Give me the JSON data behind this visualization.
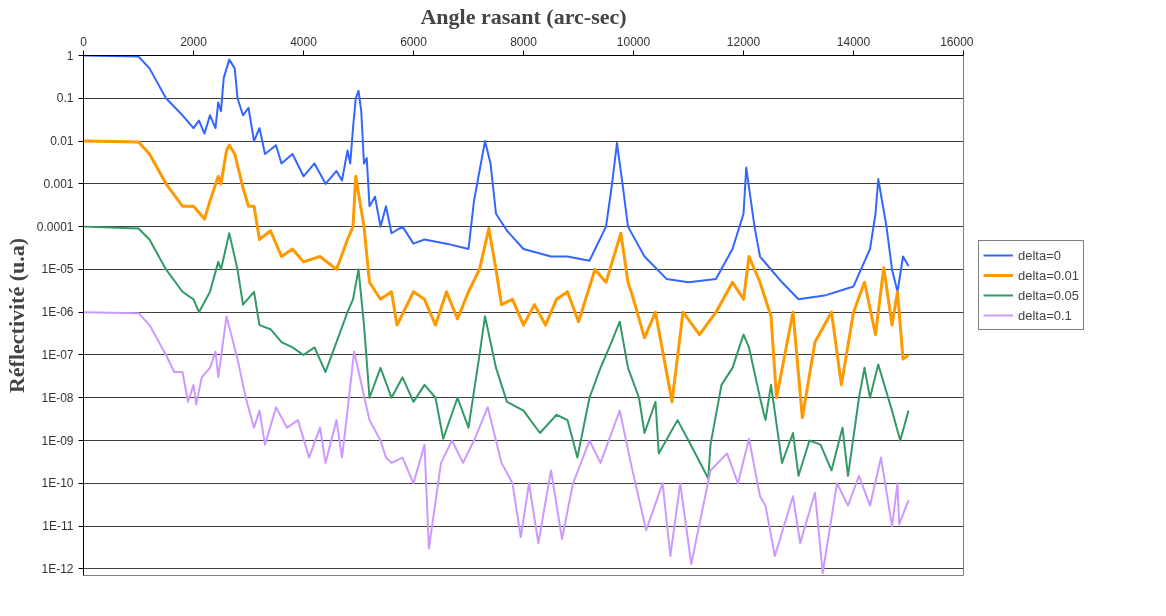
{
  "chart_data": {
    "type": "line",
    "xlabel": "Angle rasant (arc-sec)",
    "ylabel": "Réflectivité (u.a)",
    "log": "y",
    "grid": "y",
    "legend": "right",
    "xlim": [
      0,
      16000
    ],
    "xticks": [
      0,
      2000,
      4000,
      6000,
      8000,
      10000,
      12000,
      14000,
      16000
    ],
    "ylim": [
      7e-13,
      1
    ],
    "yticks": [
      1,
      0.1,
      0.01,
      0.001,
      0.0001,
      {
        "value": 1e-05,
        "label": "1E-05"
      },
      {
        "value": 1e-06,
        "label": "1E-06"
      },
      {
        "value": 1e-07,
        "label": "1E-07"
      },
      {
        "value": 1e-08,
        "label": "1E-08"
      },
      {
        "value": 1e-09,
        "label": "1E-09"
      },
      {
        "value": 1e-10,
        "label": "1E-10"
      },
      {
        "value": 1e-11,
        "label": "1E-11"
      },
      {
        "value": 1e-12,
        "label": "1E-12"
      }
    ],
    "series": [
      {
        "name": "delta=0",
        "color": "#3366ff",
        "x": [
          0,
          1000,
          1200,
          1500,
          1800,
          2000,
          2100,
          2200,
          2300,
          2400,
          2450,
          2500,
          2550,
          2650,
          2750,
          2800,
          2900,
          3000,
          3100,
          3200,
          3300,
          3500,
          3600,
          3800,
          4000,
          4200,
          4400,
          4600,
          4700,
          4800,
          4850,
          4900,
          4950,
          5000,
          5050,
          5100,
          5150,
          5200,
          5300,
          5400,
          5500,
          5600,
          5800,
          6000,
          6200,
          6600,
          7000,
          7100,
          7200,
          7300,
          7400,
          7500,
          7700,
          8000,
          8500,
          8800,
          9200,
          9500,
          9600,
          9700,
          9800,
          9900,
          10200,
          10600,
          11000,
          11500,
          11800,
          12000,
          12050,
          12200,
          12300,
          12700,
          13000,
          13500,
          14000,
          14300,
          14400,
          14450,
          14600,
          14700,
          14800,
          14900,
          15000
        ],
        "values": [
          1,
          0.95,
          0.5,
          0.1,
          0.04,
          0.02,
          0.03,
          0.015,
          0.04,
          0.02,
          0.08,
          0.05,
          0.3,
          0.8,
          0.5,
          0.1,
          0.04,
          0.06,
          0.01,
          0.02,
          0.005,
          0.008,
          0.003,
          0.005,
          0.0015,
          0.003,
          0.001,
          0.002,
          0.0012,
          0.006,
          0.003,
          0.02,
          0.1,
          0.15,
          0.05,
          0.003,
          0.004,
          0.0003,
          0.0005,
          0.0001,
          0.0003,
          7e-05,
          0.0001,
          4e-05,
          5e-05,
          4e-05,
          3e-05,
          0.0004,
          0.002,
          0.01,
          0.003,
          0.0002,
          8e-05,
          3e-05,
          2e-05,
          2e-05,
          1.6e-05,
          0.0001,
          0.0008,
          0.009,
          0.001,
          0.0001,
          2e-05,
          6e-06,
          5e-06,
          6e-06,
          3e-05,
          0.0002,
          0.0024,
          0.0001,
          2e-05,
          5e-06,
          2e-06,
          2.5e-06,
          4e-06,
          3e-05,
          0.0002,
          0.0013,
          0.0001,
          1e-05,
          3e-06,
          2e-05,
          1.2e-05
        ]
      },
      {
        "name": "delta=0.01",
        "color": "#ff9900",
        "x": [
          0,
          1000,
          1200,
          1500,
          1800,
          2000,
          2200,
          2300,
          2450,
          2500,
          2600,
          2650,
          2750,
          2900,
          3000,
          3100,
          3200,
          3400,
          3600,
          3800,
          4000,
          4300,
          4600,
          4800,
          4900,
          4950,
          5100,
          5200,
          5400,
          5600,
          5700,
          6000,
          6200,
          6400,
          6600,
          6800,
          7000,
          7200,
          7370,
          7500,
          7600,
          7800,
          8000,
          8200,
          8400,
          8600,
          8800,
          9000,
          9300,
          9500,
          9770,
          9900,
          10000,
          10200,
          10400,
          10700,
          10900,
          11200,
          11500,
          11800,
          12000,
          12100,
          12300,
          12500,
          12600,
          12900,
          13070,
          13300,
          13600,
          13780,
          14000,
          14200,
          14400,
          14550,
          14700,
          14800,
          14900,
          15000
        ],
        "values": [
          0.01,
          0.0095,
          0.005,
          0.001,
          0.0003,
          0.0003,
          0.00015,
          0.0004,
          0.0015,
          0.001,
          0.006,
          0.008,
          0.005,
          0.0008,
          0.0003,
          0.0003,
          5e-05,
          8e-05,
          2e-05,
          3e-05,
          1.5e-05,
          2e-05,
          1e-05,
          5e-05,
          0.0001,
          0.0015,
          0.0001,
          5e-06,
          2e-06,
          3e-06,
          5e-07,
          3e-06,
          2e-06,
          5e-07,
          3e-06,
          7e-07,
          3e-06,
          1e-05,
          9e-05,
          1e-05,
          1.5e-06,
          2e-06,
          5e-07,
          1.5e-06,
          5e-07,
          2e-06,
          3e-06,
          6e-07,
          1e-05,
          5e-06,
          7e-05,
          5e-06,
          2e-06,
          2.5e-07,
          1e-06,
          8e-09,
          1e-06,
          3e-07,
          1e-06,
          5e-06,
          2e-06,
          2e-05,
          5e-06,
          8e-07,
          1e-08,
          1e-06,
          3.4e-09,
          2e-07,
          1e-06,
          2e-08,
          1e-06,
          5e-06,
          3e-07,
          1.1e-05,
          5e-07,
          3e-06,
          8e-08,
          1e-07
        ]
      },
      {
        "name": "delta=0.05",
        "color": "#339966",
        "x": [
          0,
          1000,
          1200,
          1500,
          1800,
          2000,
          2100,
          2300,
          2450,
          2500,
          2650,
          2800,
          2900,
          3100,
          3200,
          3400,
          3600,
          3800,
          4000,
          4200,
          4400,
          4600,
          4800,
          4900,
          5000,
          5100,
          5200,
          5400,
          5600,
          5800,
          6000,
          6200,
          6400,
          6540,
          6800,
          7000,
          7200,
          7300,
          7500,
          7700,
          8000,
          8300,
          8600,
          8800,
          8980,
          9200,
          9400,
          9600,
          9750,
          9900,
          10100,
          10200,
          10400,
          10460,
          10800,
          11000,
          11360,
          11400,
          11600,
          11800,
          12000,
          12100,
          12300,
          12400,
          12500,
          12700,
          12900,
          13000,
          13200,
          13400,
          13600,
          13800,
          13900,
          14100,
          14200,
          14300,
          14450,
          14700,
          14850,
          15000
        ],
        "values": [
          0.0001,
          9e-05,
          5e-05,
          1e-05,
          3e-06,
          2e-06,
          1e-06,
          3e-06,
          1.5e-05,
          1e-05,
          7e-05,
          1e-05,
          1.5e-06,
          3e-06,
          5e-07,
          4e-07,
          2e-07,
          1.5e-07,
          1e-07,
          1.5e-07,
          4e-08,
          2e-07,
          1e-06,
          2e-06,
          1e-05,
          5e-07,
          1e-08,
          5e-08,
          1e-08,
          3e-08,
          8e-09,
          2e-08,
          1e-08,
          1.1e-09,
          1e-08,
          2e-09,
          1e-07,
          8e-07,
          5e-08,
          8e-09,
          5e-09,
          1.5e-09,
          4e-09,
          3e-09,
          4e-10,
          1e-08,
          5e-08,
          2e-07,
          6e-07,
          5e-08,
          1e-08,
          1.5e-09,
          8e-09,
          5e-10,
          3e-09,
          1e-09,
          1.3e-10,
          8e-10,
          2e-08,
          5e-08,
          3e-07,
          1.5e-07,
          1e-08,
          3e-09,
          2e-08,
          3e-10,
          1.5e-09,
          1.5e-10,
          1e-09,
          8e-10,
          2e-10,
          2e-09,
          1.5e-10,
          1e-08,
          5e-08,
          1e-08,
          6e-08,
          5e-09,
          1e-09,
          5e-09
        ]
      },
      {
        "name": "delta=0.1",
        "color": "#cc99ff",
        "x": [
          0,
          1000,
          1200,
          1500,
          1650,
          1800,
          1900,
          2000,
          2050,
          2150,
          2300,
          2400,
          2450,
          2600,
          2800,
          2950,
          3100,
          3200,
          3300,
          3500,
          3700,
          3900,
          4100,
          4300,
          4400,
          4600,
          4700,
          4800,
          4920,
          5200,
          5400,
          5500,
          5600,
          5800,
          6000,
          6200,
          6280,
          6500,
          6700,
          6900,
          7100,
          7350,
          7600,
          7800,
          7950,
          8100,
          8270,
          8500,
          8700,
          8900,
          9200,
          9400,
          9600,
          9750,
          9950,
          10230,
          10530,
          10670,
          10850,
          11050,
          11400,
          11700,
          11900,
          12100,
          12300,
          12400,
          12570,
          12900,
          13030,
          13300,
          13440,
          13700,
          13900,
          14100,
          14300,
          14500,
          14700,
          14800,
          14830,
          15000
        ],
        "values": [
          1e-06,
          9.5e-07,
          5e-07,
          1e-07,
          4e-08,
          4e-08,
          8e-09,
          2e-08,
          7e-09,
          3e-08,
          5e-08,
          1.2e-07,
          3e-08,
          8e-07,
          8e-08,
          1e-08,
          2e-09,
          5e-09,
          8e-10,
          6e-09,
          2e-09,
          3e-09,
          4e-10,
          2e-09,
          3e-10,
          3e-09,
          4e-10,
          5e-09,
          1.2e-07,
          3e-09,
          1e-09,
          4e-10,
          3e-10,
          4e-10,
          1e-10,
          8e-10,
          3e-12,
          3e-10,
          1e-09,
          3e-10,
          1e-09,
          6e-09,
          3e-10,
          1e-10,
          5.5e-12,
          1e-10,
          4e-12,
          2e-10,
          5e-12,
          1e-10,
          1e-09,
          3e-10,
          1.5e-09,
          5e-09,
          3e-10,
          8e-12,
          1e-10,
          2e-12,
          1e-10,
          1.3e-12,
          2e-10,
          5e-10,
          1e-10,
          1.1e-09,
          5e-11,
          3e-11,
          2e-12,
          5e-11,
          4e-12,
          6e-11,
          8e-13,
          1e-10,
          3e-11,
          1.5e-10,
          3e-11,
          4e-10,
          1e-11,
          1e-10,
          1.1e-11,
          4e-11
        ]
      }
    ]
  }
}
